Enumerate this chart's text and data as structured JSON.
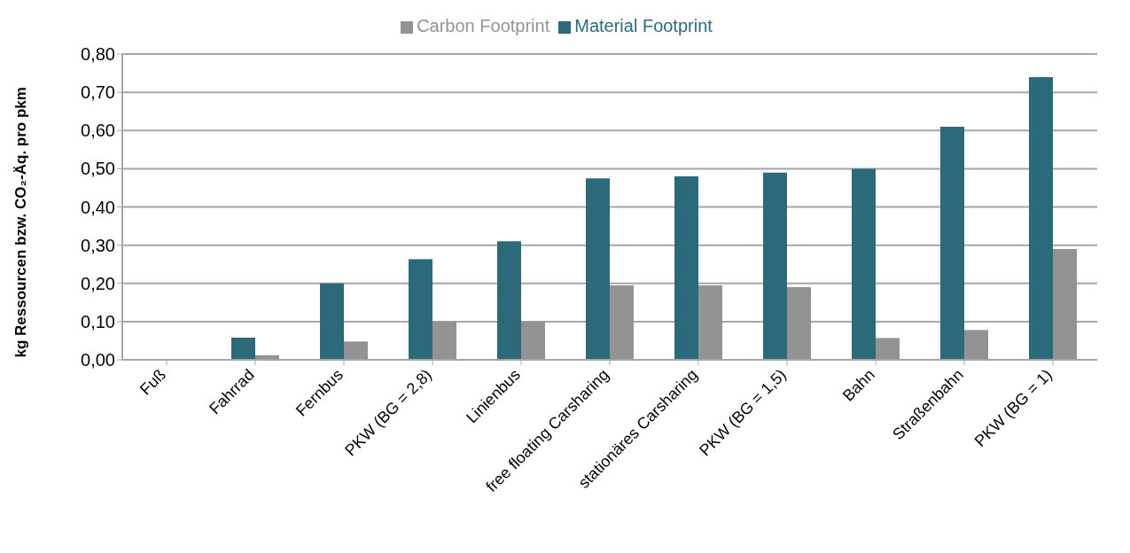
{
  "chart_data": {
    "type": "bar",
    "ylabel": "kg Ressourcen bzw. CO₂-Äq. pro pkm",
    "categories": [
      "Fuß",
      "Fahrrad",
      "Fernbus",
      "PKW (BG = 2,8)",
      "Linienbus",
      "free floating Carsharing",
      "stationäres Carsharing",
      "PKW (BG = 1,5)",
      "Bahn",
      "Straßenbahn",
      "PKW (BG = 1)"
    ],
    "series": [
      {
        "name": "Material Footprint",
        "color": "#2a6a7a",
        "values": [
          0,
          0.058,
          0.2,
          0.263,
          0.31,
          0.475,
          0.48,
          0.49,
          0.5,
          0.61,
          0.74
        ]
      },
      {
        "name": "Carbon Footprint",
        "color": "#939393",
        "values": [
          0,
          0.012,
          0.048,
          0.1,
          0.1,
          0.195,
          0.195,
          0.19,
          0.057,
          0.078,
          0.29
        ]
      }
    ],
    "ylim": [
      0,
      0.8
    ],
    "yticks": [
      {
        "value": 0,
        "label": "0,00"
      },
      {
        "value": 0.1,
        "label": "0,10"
      },
      {
        "value": 0.2,
        "label": "0,20"
      },
      {
        "value": 0.3,
        "label": "0,30"
      },
      {
        "value": 0.4,
        "label": "0,40"
      },
      {
        "value": 0.5,
        "label": "0,50"
      },
      {
        "value": 0.6,
        "label": "0,60"
      },
      {
        "value": 0.7,
        "label": "0,70"
      },
      {
        "value": 0.8,
        "label": "0,80"
      }
    ],
    "grid": "y",
    "legend": "top"
  }
}
